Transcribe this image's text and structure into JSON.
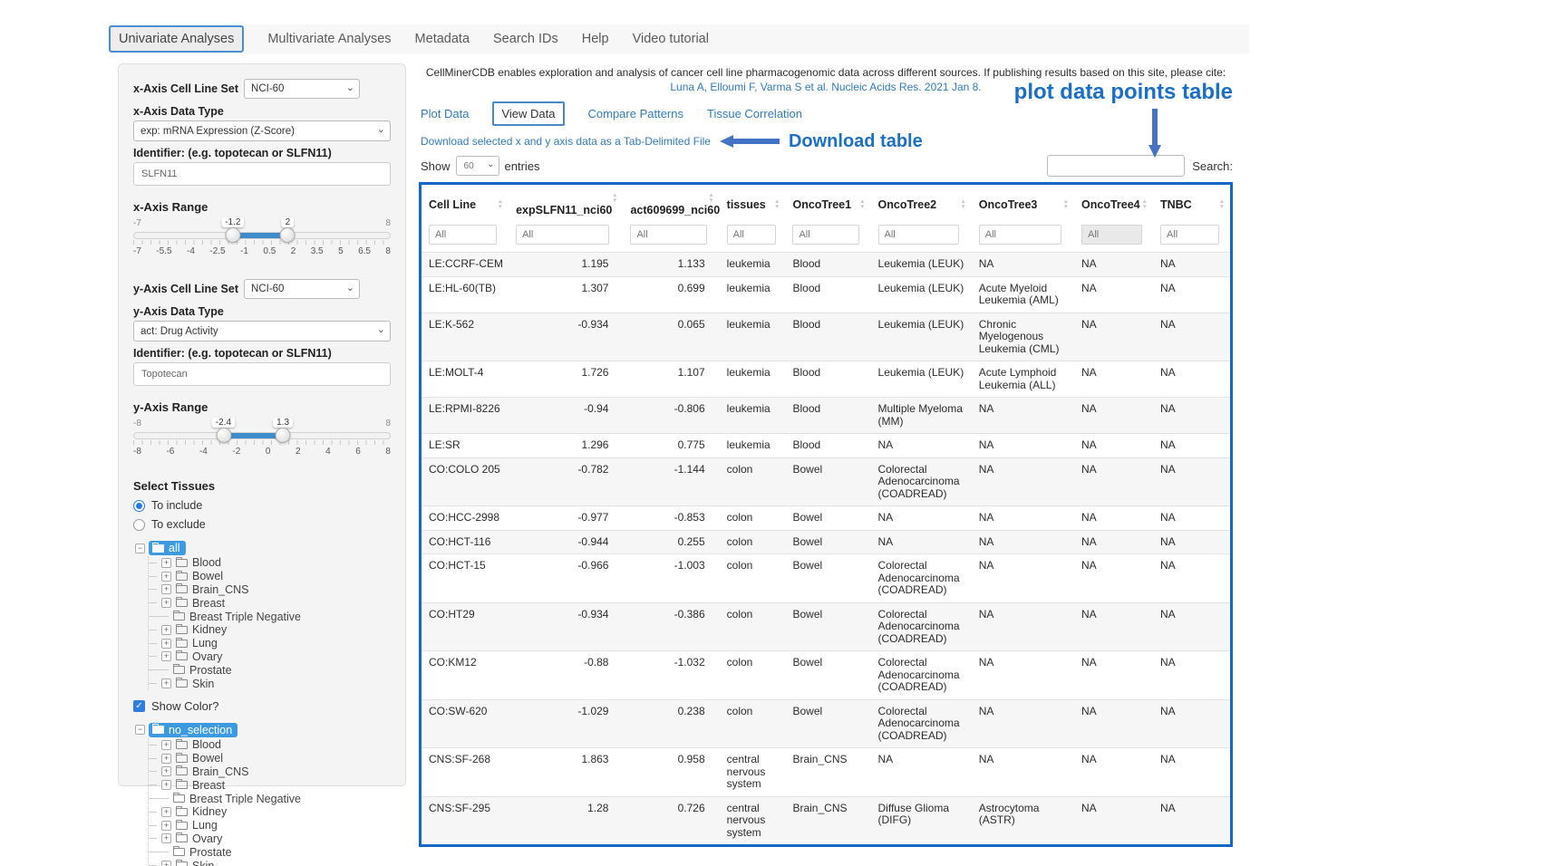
{
  "nav": {
    "tabs": [
      {
        "label": "Univariate Analyses",
        "active": true
      },
      {
        "label": "Multivariate Analyses",
        "active": false
      },
      {
        "label": "Metadata",
        "active": false
      },
      {
        "label": "Search IDs",
        "active": false
      },
      {
        "label": "Help",
        "active": false
      },
      {
        "label": "Video tutorial",
        "active": false
      }
    ]
  },
  "sidebar": {
    "x_axis": {
      "cell_line_set_label": "x-Axis Cell Line Set",
      "cell_line_set_value": "NCI-60",
      "data_type_label": "x-Axis Data Type",
      "data_type_value": "exp: mRNA Expression (Z-Score)",
      "identifier_label": "Identifier: (e.g. topotecan or SLFN11)",
      "identifier_value": "SLFN11",
      "range_label": "x-Axis Range",
      "range": {
        "min": -7,
        "max": 8,
        "low": -1.2,
        "high": 2,
        "ticks": [
          "-7",
          "-5.5",
          "-4",
          "-2.5",
          "-1",
          "0.5",
          "2",
          "3.5",
          "5",
          "6.5",
          "8"
        ]
      }
    },
    "y_axis": {
      "cell_line_set_label": "y-Axis Cell Line Set",
      "cell_line_set_value": "NCI-60",
      "data_type_label": "y-Axis Data Type",
      "data_type_value": "act: Drug Activity",
      "identifier_label": "Identifier: (e.g. topotecan or SLFN11)",
      "identifier_value": "Topotecan",
      "range_label": "y-Axis Range",
      "range": {
        "min": -8,
        "max": 8,
        "low": -2.4,
        "high": 1.3,
        "ticks": [
          "-8",
          "-6",
          "-4",
          "-2",
          "0",
          "2",
          "4",
          "6",
          "8"
        ]
      }
    },
    "select_tissues": {
      "label": "Select Tissues",
      "options": [
        {
          "label": "To include",
          "selected": true
        },
        {
          "label": "To exclude",
          "selected": false
        }
      ]
    },
    "tissue_tree": {
      "root": "all",
      "items": [
        {
          "label": "Blood",
          "expandable": true
        },
        {
          "label": "Bowel",
          "expandable": true
        },
        {
          "label": "Brain_CNS",
          "expandable": true
        },
        {
          "label": "Breast",
          "expandable": true
        },
        {
          "label": "Breast Triple Negative",
          "expandable": false
        },
        {
          "label": "Kidney",
          "expandable": true
        },
        {
          "label": "Lung",
          "expandable": true
        },
        {
          "label": "Ovary",
          "expandable": true
        },
        {
          "label": "Prostate",
          "expandable": false
        },
        {
          "label": "Skin",
          "expandable": true
        }
      ]
    },
    "show_color_label": "Show Color?",
    "show_color_checked": true,
    "color_tree": {
      "root": "no_selection",
      "items": [
        {
          "label": "Blood",
          "expandable": true
        },
        {
          "label": "Bowel",
          "expandable": true
        },
        {
          "label": "Brain_CNS",
          "expandable": true
        },
        {
          "label": "Breast",
          "expandable": true
        },
        {
          "label": "Breast Triple Negative",
          "expandable": false
        },
        {
          "label": "Kidney",
          "expandable": true
        },
        {
          "label": "Lung",
          "expandable": true
        },
        {
          "label": "Ovary",
          "expandable": true
        },
        {
          "label": "Prostate",
          "expandable": false
        },
        {
          "label": "Skin",
          "expandable": true
        }
      ]
    }
  },
  "main": {
    "citation_text": "CellMinerCDB enables exploration and analysis of cancer cell line pharmacogenomic data across different sources. If publishing results based on this site, please cite:",
    "citation_link": "Luna A, Elloumi F, Varma S et al. Nucleic Acids Res. 2021 Jan 8.",
    "tabs": [
      {
        "label": "Plot Data",
        "active": false
      },
      {
        "label": "View Data",
        "active": true
      },
      {
        "label": "Compare Patterns",
        "active": false
      },
      {
        "label": "Tissue Correlation",
        "active": false
      }
    ],
    "download_link": "Download selected x and y axis data as a Tab-Delimited File",
    "show_label": "Show",
    "entries_value": "60",
    "entries_label": "entries",
    "search_label": "Search:",
    "annotations": {
      "download_table": "Download table",
      "plot_table": "plot data points table"
    }
  },
  "table": {
    "columns": [
      "Cell Line",
      "expSLFN11_nci60",
      "act609699_nci60",
      "tissues",
      "OncoTree1",
      "OncoTree2",
      "OncoTree3",
      "OncoTree4",
      "TNBC"
    ],
    "filter_placeholder": "All",
    "rows": [
      [
        "LE:CCRF-CEM",
        "1.195",
        "1.133",
        "leukemia",
        "Blood",
        "Leukemia (LEUK)",
        "NA",
        "NA",
        "NA"
      ],
      [
        "LE:HL-60(TB)",
        "1.307",
        "0.699",
        "leukemia",
        "Blood",
        "Leukemia (LEUK)",
        "Acute Myeloid Leukemia (AML)",
        "NA",
        "NA"
      ],
      [
        "LE:K-562",
        "-0.934",
        "0.065",
        "leukemia",
        "Blood",
        "Leukemia (LEUK)",
        "Chronic Myelogenous Leukemia (CML)",
        "NA",
        "NA"
      ],
      [
        "LE:MOLT-4",
        "1.726",
        "1.107",
        "leukemia",
        "Blood",
        "Leukemia (LEUK)",
        "Acute Lymphoid Leukemia (ALL)",
        "NA",
        "NA"
      ],
      [
        "LE:RPMI-8226",
        "-0.94",
        "-0.806",
        "leukemia",
        "Blood",
        "Multiple Myeloma (MM)",
        "NA",
        "NA",
        "NA"
      ],
      [
        "LE:SR",
        "1.296",
        "0.775",
        "leukemia",
        "Blood",
        "NA",
        "NA",
        "NA",
        "NA"
      ],
      [
        "CO:COLO 205",
        "-0.782",
        "-1.144",
        "colon",
        "Bowel",
        "Colorectal Adenocarcinoma (COADREAD)",
        "NA",
        "NA",
        "NA"
      ],
      [
        "CO:HCC-2998",
        "-0.977",
        "-0.853",
        "colon",
        "Bowel",
        "NA",
        "NA",
        "NA",
        "NA"
      ],
      [
        "CO:HCT-116",
        "-0.944",
        "0.255",
        "colon",
        "Bowel",
        "NA",
        "NA",
        "NA",
        "NA"
      ],
      [
        "CO:HCT-15",
        "-0.966",
        "-1.003",
        "colon",
        "Bowel",
        "Colorectal Adenocarcinoma (COADREAD)",
        "NA",
        "NA",
        "NA"
      ],
      [
        "CO:HT29",
        "-0.934",
        "-0.386",
        "colon",
        "Bowel",
        "Colorectal Adenocarcinoma (COADREAD)",
        "NA",
        "NA",
        "NA"
      ],
      [
        "CO:KM12",
        "-0.88",
        "-1.032",
        "colon",
        "Bowel",
        "Colorectal Adenocarcinoma (COADREAD)",
        "NA",
        "NA",
        "NA"
      ],
      [
        "CO:SW-620",
        "-1.029",
        "0.238",
        "colon",
        "Bowel",
        "Colorectal Adenocarcinoma (COADREAD)",
        "NA",
        "NA",
        "NA"
      ],
      [
        "CNS:SF-268",
        "1.863",
        "0.958",
        "central nervous system",
        "Brain_CNS",
        "NA",
        "NA",
        "NA",
        "NA"
      ],
      [
        "CNS:SF-295",
        "1.28",
        "0.726",
        "central nervous system",
        "Brain_CNS",
        "Diffuse Glioma (DIFG)",
        "Astrocytoma (ASTR)",
        "NA",
        "NA"
      ]
    ]
  }
}
